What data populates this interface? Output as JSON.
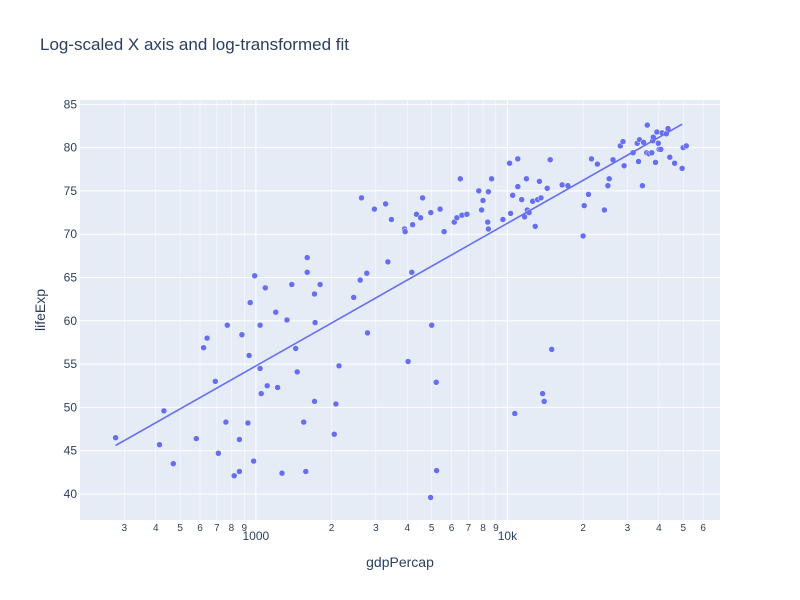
{
  "chart_data": {
    "type": "scatter",
    "title": "Log-scaled X axis and log-transformed fit",
    "xlabel": "gdpPercap",
    "ylabel": "lifeExp",
    "x_scale": "log",
    "xlim": [
      200,
      70000
    ],
    "ylim": [
      37,
      85.5
    ],
    "grid": true,
    "y_ticks": [
      "40",
      "45",
      "50",
      "55",
      "60",
      "65",
      "70",
      "75",
      "80",
      "85"
    ],
    "x_ticks_major": [
      {
        "value": 1000,
        "label": "1000"
      },
      {
        "value": 10000,
        "label": "10k"
      }
    ],
    "x_ticks_minor": [
      {
        "value": 300,
        "label": "3"
      },
      {
        "value": 400,
        "label": "4"
      },
      {
        "value": 500,
        "label": "5"
      },
      {
        "value": 600,
        "label": "6"
      },
      {
        "value": 700,
        "label": "7"
      },
      {
        "value": 800,
        "label": "8"
      },
      {
        "value": 900,
        "label": "9"
      },
      {
        "value": 2000,
        "label": "2"
      },
      {
        "value": 3000,
        "label": "3"
      },
      {
        "value": 4000,
        "label": "4"
      },
      {
        "value": 5000,
        "label": "5"
      },
      {
        "value": 6000,
        "label": "6"
      },
      {
        "value": 7000,
        "label": "7"
      },
      {
        "value": 8000,
        "label": "8"
      },
      {
        "value": 9000,
        "label": "9"
      },
      {
        "value": 20000,
        "label": "2"
      },
      {
        "value": 30000,
        "label": "3"
      },
      {
        "value": 40000,
        "label": "4"
      },
      {
        "value": 50000,
        "label": "5"
      },
      {
        "value": 60000,
        "label": "6"
      }
    ],
    "colors": {
      "marker": "#636efa",
      "line": "#636efa",
      "plot_bg": "#e5ecf6",
      "grid": "#ffffff",
      "text": "#2a3f5f"
    },
    "series": [
      {
        "mode": "markers",
        "points": [
          [
            277,
            46.5
          ],
          [
            414,
            45.7
          ],
          [
            431,
            49.6
          ],
          [
            470,
            43.5
          ],
          [
            580,
            46.4
          ],
          [
            620,
            56.9
          ],
          [
            640,
            58.0
          ],
          [
            690,
            53.0
          ],
          [
            710,
            44.7
          ],
          [
            760,
            48.3
          ],
          [
            770,
            59.5
          ],
          [
            820,
            42.1
          ],
          [
            860,
            42.6
          ],
          [
            860,
            46.3
          ],
          [
            880,
            58.4
          ],
          [
            930,
            48.2
          ],
          [
            940,
            56.0
          ],
          [
            950,
            62.1
          ],
          [
            980,
            43.8
          ],
          [
            990,
            65.2
          ],
          [
            1040,
            59.5
          ],
          [
            1040,
            54.5
          ],
          [
            1050,
            51.6
          ],
          [
            1090,
            63.8
          ],
          [
            1110,
            52.5
          ],
          [
            1200,
            61.0
          ],
          [
            1220,
            52.3
          ],
          [
            1270,
            42.4
          ],
          [
            1330,
            60.1
          ],
          [
            1390,
            64.2
          ],
          [
            1440,
            56.8
          ],
          [
            1460,
            54.1
          ],
          [
            1550,
            48.3
          ],
          [
            1580,
            42.6
          ],
          [
            1600,
            67.3
          ],
          [
            1600,
            65.6
          ],
          [
            1710,
            50.7
          ],
          [
            1710,
            63.1
          ],
          [
            1720,
            59.8
          ],
          [
            1800,
            64.2
          ],
          [
            2050,
            46.9
          ],
          [
            2080,
            50.4
          ],
          [
            2140,
            54.8
          ],
          [
            2450,
            62.7
          ],
          [
            2600,
            64.7
          ],
          [
            2630,
            74.2
          ],
          [
            2760,
            65.5
          ],
          [
            2780,
            58.6
          ],
          [
            2960,
            72.9
          ],
          [
            3280,
            73.5
          ],
          [
            3350,
            66.8
          ],
          [
            3460,
            71.7
          ],
          [
            3900,
            70.6
          ],
          [
            3920,
            70.3
          ],
          [
            4030,
            55.3
          ],
          [
            4170,
            65.6
          ],
          [
            4200,
            71.1
          ],
          [
            4350,
            72.3
          ],
          [
            4520,
            71.9
          ],
          [
            4600,
            74.2
          ],
          [
            4950,
            39.6
          ],
          [
            4960,
            72.5
          ],
          [
            5000,
            59.5
          ],
          [
            5230,
            42.7
          ],
          [
            5210,
            52.9
          ],
          [
            5400,
            72.9
          ],
          [
            5600,
            70.3
          ],
          [
            6150,
            71.4
          ],
          [
            6300,
            71.9
          ],
          [
            6500,
            76.4
          ],
          [
            6600,
            72.2
          ],
          [
            6900,
            72.3
          ],
          [
            7700,
            75.0
          ],
          [
            7900,
            72.8
          ],
          [
            8000,
            73.9
          ],
          [
            8350,
            71.4
          ],
          [
            8400,
            74.9
          ],
          [
            8400,
            70.6
          ],
          [
            8650,
            76.4
          ],
          [
            9600,
            71.7
          ],
          [
            10200,
            78.2
          ],
          [
            10300,
            72.4
          ],
          [
            10500,
            74.5
          ],
          [
            10700,
            49.3
          ],
          [
            11000,
            78.7
          ],
          [
            11000,
            75.5
          ],
          [
            11400,
            74.0
          ],
          [
            11700,
            72.0
          ],
          [
            11900,
            76.4
          ],
          [
            12000,
            72.8
          ],
          [
            12200,
            72.5
          ],
          [
            12600,
            73.8
          ],
          [
            12900,
            70.9
          ],
          [
            13200,
            74.0
          ],
          [
            13400,
            76.1
          ],
          [
            13600,
            74.2
          ],
          [
            13800,
            51.6
          ],
          [
            14000,
            50.7
          ],
          [
            14400,
            75.3
          ],
          [
            14800,
            78.6
          ],
          [
            15000,
            56.7
          ],
          [
            16500,
            75.7
          ],
          [
            17400,
            75.6
          ],
          [
            20000,
            69.8
          ],
          [
            20200,
            73.3
          ],
          [
            21000,
            74.6
          ],
          [
            21600,
            78.7
          ],
          [
            22800,
            78.1
          ],
          [
            24300,
            72.8
          ],
          [
            25100,
            75.6
          ],
          [
            25400,
            76.4
          ],
          [
            26300,
            78.6
          ],
          [
            28100,
            80.2
          ],
          [
            28800,
            80.7
          ],
          [
            29100,
            77.9
          ],
          [
            31600,
            79.4
          ],
          [
            32800,
            80.5
          ],
          [
            33200,
            78.4
          ],
          [
            33500,
            80.9
          ],
          [
            34400,
            75.6
          ],
          [
            34800,
            80.6
          ],
          [
            35800,
            79.4
          ],
          [
            36000,
            82.6
          ],
          [
            36500,
            79.3
          ],
          [
            37500,
            79.4
          ],
          [
            37800,
            80.8
          ],
          [
            38000,
            81.2
          ],
          [
            38800,
            78.3
          ],
          [
            39300,
            81.8
          ],
          [
            39800,
            80.5
          ],
          [
            40100,
            79.8
          ],
          [
            40700,
            79.8
          ],
          [
            41200,
            81.7
          ],
          [
            42800,
            81.6
          ],
          [
            43500,
            82.2
          ],
          [
            44200,
            78.9
          ],
          [
            46200,
            78.2
          ],
          [
            49500,
            77.6
          ],
          [
            50000,
            80.0
          ],
          [
            51400,
            80.2
          ]
        ]
      },
      {
        "mode": "lines",
        "points": [
          [
            277,
            45.6
          ],
          [
            49500,
            82.7
          ]
        ]
      }
    ]
  }
}
